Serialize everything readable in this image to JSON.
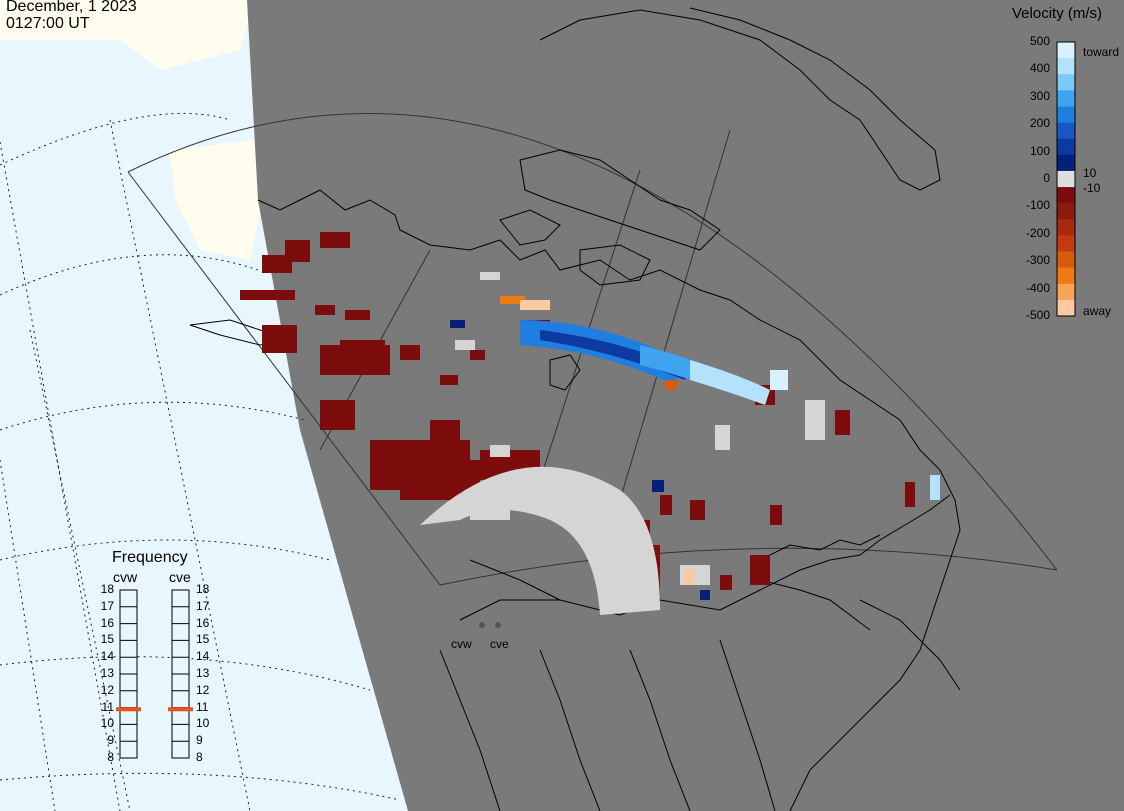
{
  "header": {
    "date": "December, 1 2023",
    "time": "0127:00 UT"
  },
  "velocity_legend": {
    "title": "Velocity (m/s)",
    "ticks": [
      "500",
      "400",
      "300",
      "200",
      "100",
      "0",
      "-100",
      "-200",
      "-300",
      "-400",
      "-500"
    ],
    "right_labels": {
      "toward": "toward",
      "ten": "10",
      "minus_ten": "-10",
      "away": "away"
    },
    "colors": [
      "#d8f0ff",
      "#b4e2fc",
      "#7dc9f6",
      "#3ea4f0",
      "#1f7fe0",
      "#1657c4",
      "#0d3aa0",
      "#06207a",
      "#dddddd",
      "#7d0d0d",
      "#8c1a0e",
      "#a82a0e",
      "#c43a0e",
      "#d85a0e",
      "#ef7a14",
      "#f7a45a",
      "#fcc9a0"
    ]
  },
  "frequency_panel": {
    "title": "Frequency",
    "radars": [
      "cvw",
      "cve"
    ],
    "ticks": [
      "18",
      "17",
      "16",
      "15",
      "14",
      "13",
      "12",
      "11",
      "10",
      "9",
      "8"
    ],
    "selected_mhz": [
      10.9,
      10.9
    ],
    "marker_color": "#e8521e"
  },
  "map": {
    "radar_site_labels": [
      "cvw",
      "cve"
    ],
    "land_color": "#7a7a7a",
    "ocean_color": "#e8f6fe",
    "nightside_edge_color": "#fffdee"
  }
}
